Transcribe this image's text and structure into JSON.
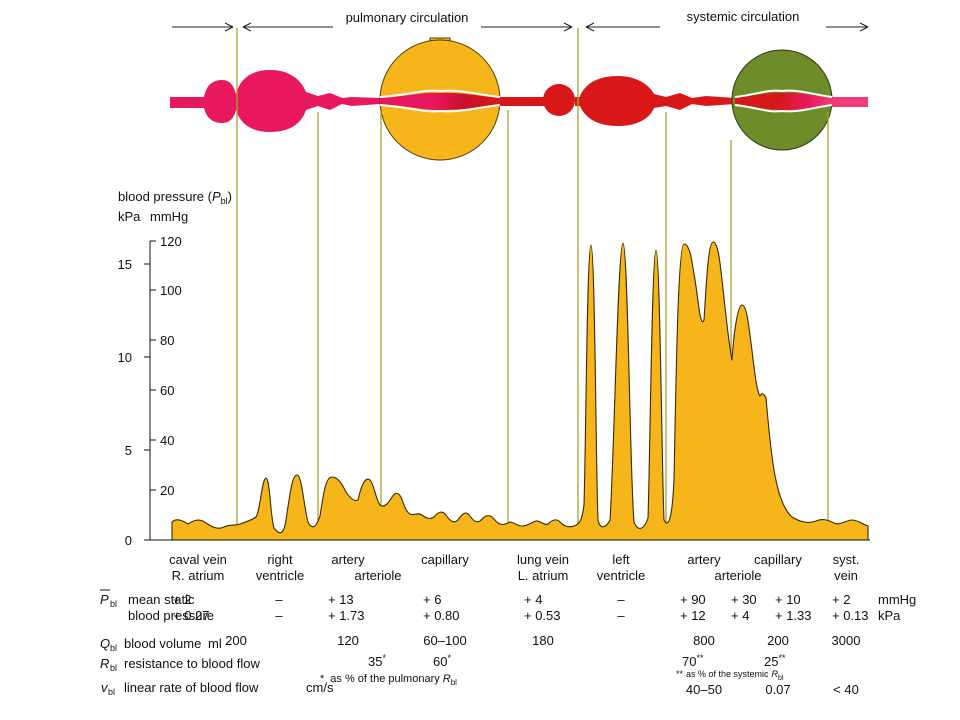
{
  "header": {
    "pulmonary": "pulmonary circulation",
    "systemic": "systemic circulation"
  },
  "axis": {
    "title_main": "blood pressure (",
    "title_sym": "P",
    "title_sub": "bl",
    "title_close": ")",
    "unit_kpa": "kPa",
    "unit_mmhg": "mmHg",
    "kpa_ticks": [
      "0",
      "5",
      "10",
      "15"
    ],
    "mmhg_ticks": [
      "20",
      "40",
      "60",
      "80",
      "100",
      "120"
    ]
  },
  "segments": [
    {
      "l1": "caval vein",
      "l2": "R. atrium"
    },
    {
      "l1": "right",
      "l2": "ventricle"
    },
    {
      "l1": "artery",
      "l2": "arteriole"
    },
    {
      "l1": "capillary",
      "l2": ""
    },
    {
      "l1": "lung vein",
      "l2": "L. atrium"
    },
    {
      "l1": "left",
      "l2": "ventricle"
    },
    {
      "l1": "artery",
      "l2": "arteriole"
    },
    {
      "l1": "capillary",
      "l2": ""
    },
    {
      "l1": "syst.",
      "l2": "vein"
    }
  ],
  "rows": {
    "pbl_sym": "P",
    "pbl_sub": "bl",
    "pbl_l1": "mean static",
    "pbl_l2": "blood pressure",
    "mmhg_unit": "mmHg",
    "kpa_unit": "kPa",
    "mmhg_values": [
      "+ 2",
      "–",
      "+ 13",
      "+ 6",
      "+ 4",
      "–",
      "+ 90",
      "+ 30",
      "+ 10",
      "+ 2"
    ],
    "kpa_values": [
      "+ 0.27",
      "–",
      "+ 1.73",
      "+ 0.80",
      "+ 0.53",
      "–",
      "+ 12",
      "+ 4",
      "+ 1.33",
      "+ 0.13"
    ],
    "qbl_sym": "Q",
    "qbl_sub": "bl",
    "qbl_label": "blood volume",
    "qbl_unit": "ml",
    "qbl_values": [
      "200",
      "120",
      "60–100",
      "180",
      "800",
      "200",
      "3000"
    ],
    "rbl_sym": "R",
    "rbl_sub": "bl",
    "rbl_label": "resistance to blood flow",
    "rbl_pulm": [
      "35",
      "60"
    ],
    "rbl_syst": [
      "70",
      "25"
    ],
    "star1": "*",
    "star2": "**",
    "note_pulm_pre": "as % of the pulmonary",
    "note_syst_pre": "as % of the systemic",
    "vbl_sym": "v",
    "vbl_sub": "bl",
    "vbl_label": "linear rate of blood flow",
    "vbl_unit": "cm/s",
    "vbl_values": [
      "40–50",
      "0.07",
      "< 40"
    ]
  },
  "colors": {
    "pink": "#e8185e",
    "red": "#d81818",
    "yellow": "#f7b51c",
    "olive": "#6e8c2a",
    "line": "#a3a528"
  },
  "chart_data": {
    "type": "area",
    "yaxis_kpa": [
      0,
      16
    ],
    "yaxis_mmhg": [
      0,
      120
    ],
    "pressure_mmhg_by_segment": {
      "caval vein / R. atrium": [
        1,
        4
      ],
      "right ventricle": [
        0,
        25
      ],
      "artery / arteriole": [
        9,
        25
      ],
      "capillary": [
        2,
        8
      ],
      "lung vein / L. atrium": [
        1,
        6
      ],
      "left ventricle": [
        0,
        120
      ],
      "artery / arteriole (systemic)": [
        40,
        120
      ],
      "capillary (systemic)": [
        10,
        30
      ],
      "syst. vein": [
        1,
        4
      ]
    }
  }
}
